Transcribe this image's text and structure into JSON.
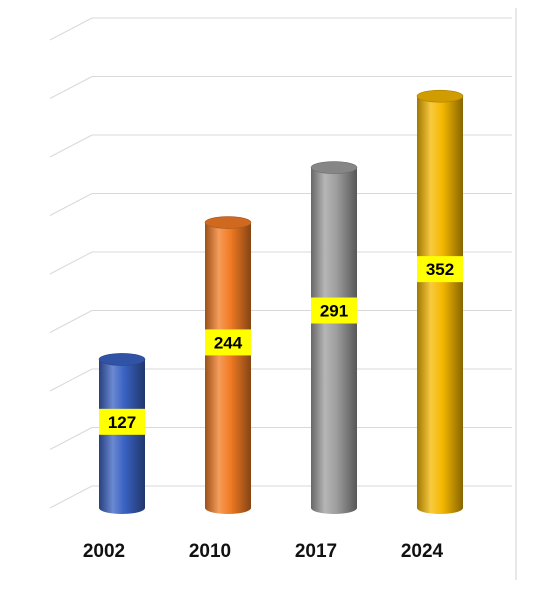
{
  "chart_data": {
    "type": "bar",
    "style": "3d-cylinder",
    "categories": [
      "2002",
      "2010",
      "2017",
      "2024"
    ],
    "values": [
      127,
      244,
      291,
      352
    ],
    "colors": [
      "#3a62c3",
      "#f27b24",
      "#9e9e9e",
      "#f5b800"
    ],
    "label_bg": "#ffff00",
    "ylim": [
      0,
      400
    ],
    "grid": true,
    "title": "",
    "xlabel": "",
    "ylabel": ""
  }
}
